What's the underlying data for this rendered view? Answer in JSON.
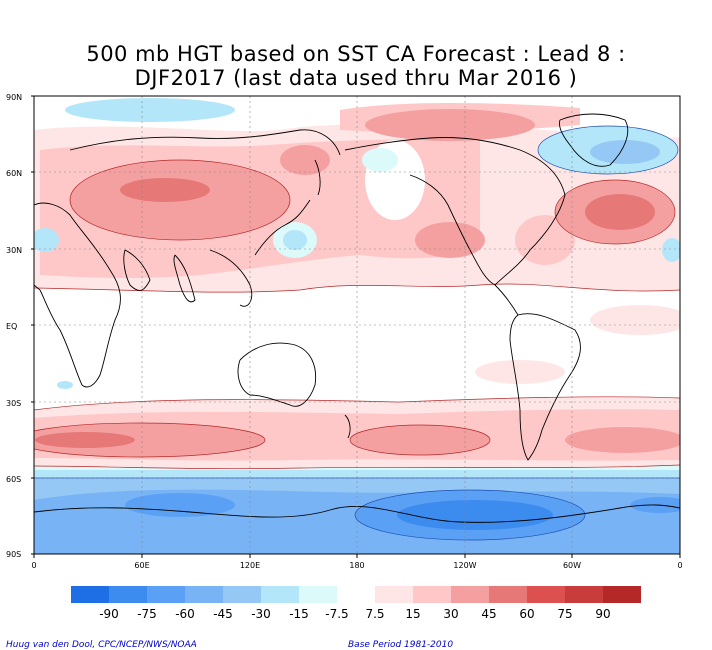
{
  "title": {
    "line1": "500 mb HGT based on SST CA Forecast : Lead 8 :",
    "line2": "DJF2017 (last data used thru Mar 2016 )"
  },
  "lat_labels": [
    "90N",
    "60N",
    "30N",
    "EQ",
    "30S",
    "60S",
    "90S"
  ],
  "lon_labels": [
    "0",
    "60E",
    "120E",
    "180",
    "120W",
    "60W",
    "0"
  ],
  "legend": {
    "labels": [
      "-90",
      "-75",
      "-60",
      "-45",
      "-30",
      "-15",
      "-7.5",
      "7.5",
      "15",
      "30",
      "45",
      "60",
      "75",
      "90"
    ],
    "colors": [
      "#1e6fe6",
      "#3c8cf0",
      "#5aa0f5",
      "#78b4f5",
      "#96c8f5",
      "#b4e6fa",
      "#dcfafa",
      "#ffffff",
      "#ffe6e6",
      "#ffc8c8",
      "#f5a0a0",
      "#e67878",
      "#dc5050",
      "#c83c3c",
      "#b42828"
    ]
  },
  "credits": {
    "left": "Huug van den Dool, CPC/NCEP/NWS/NOAA",
    "right": "Base Period 1981-2010"
  }
}
